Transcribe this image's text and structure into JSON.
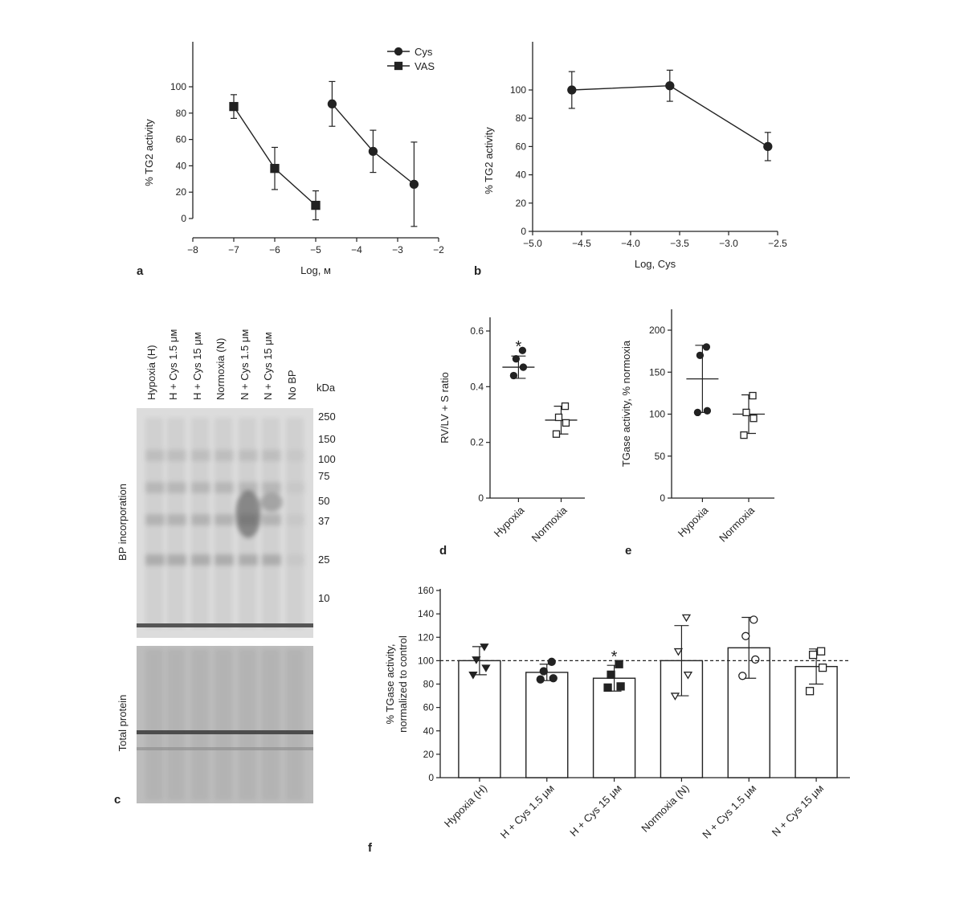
{
  "panels": {
    "a": "a",
    "b": "b",
    "c": "c",
    "d": "d",
    "e": "e",
    "f": "f"
  },
  "colors": {
    "ink": "#222222",
    "blot_bg": "#dcdcdc",
    "gel_bg": "#bdbdbd"
  },
  "chart_data": [
    {
      "id": "a",
      "type": "line",
      "xlabel": "Log, м",
      "ylabel": "% TG2 activity",
      "xlim": [
        -8,
        -2
      ],
      "ylim": [
        -10,
        130
      ],
      "xticks": [
        -8,
        -7,
        -6,
        -5,
        -4,
        -3,
        -2
      ],
      "xtick_labels": [
        "−8",
        "−7",
        "−6",
        "−5",
        "−4",
        "−3",
        "−2"
      ],
      "yticks": [
        0,
        20,
        40,
        60,
        80,
        100
      ],
      "yticks_labels": [
        "0",
        "20",
        "40",
        "60",
        "80",
        "100"
      ],
      "legend": "top-right",
      "series": [
        {
          "name": "Cys",
          "marker": "circle",
          "x": [
            -4.6,
            -3.6,
            -2.6
          ],
          "y": [
            87,
            51,
            26
          ],
          "err": [
            17,
            16,
            32
          ]
        },
        {
          "name": "VAS",
          "marker": "square",
          "x": [
            -7,
            -6,
            -5
          ],
          "y": [
            85,
            38,
            10
          ],
          "err": [
            9,
            16,
            11
          ]
        }
      ]
    },
    {
      "id": "b",
      "type": "line",
      "xlabel": "Log, Cys",
      "ylabel": "% TG2 activity",
      "xlim": [
        -5.0,
        -2.5
      ],
      "ylim": [
        0,
        125
      ],
      "xticks": [
        -5.0,
        -4.5,
        -4.0,
        -3.5,
        -3.0,
        -2.5
      ],
      "xtick_labels": [
        "−5.0",
        "−4.5",
        "−4.0",
        "−3.5",
        "−3.0",
        "−2.5"
      ],
      "yticks": [
        0,
        20,
        40,
        60,
        80,
        100
      ],
      "yticks_labels": [
        "0",
        "20",
        "40",
        "60",
        "80",
        "100"
      ],
      "series": [
        {
          "marker": "circle",
          "x": [
            -4.6,
            -3.6,
            -2.6
          ],
          "y": [
            100,
            103,
            60
          ],
          "err": [
            13,
            11,
            10
          ]
        }
      ]
    },
    {
      "id": "d",
      "type": "scatter",
      "ylabel": "RV/LV + S ratio",
      "categories": [
        "Hypoxia",
        "Normoxia"
      ],
      "ylim": [
        0,
        0.65
      ],
      "yticks": [
        0,
        0.2,
        0.4,
        0.6
      ],
      "yticks_labels": [
        "0",
        "0.2",
        "0.4",
        "0.6"
      ],
      "annotations": [
        "*"
      ],
      "groups": [
        {
          "marker": "filled",
          "points": [
            0.44,
            0.47,
            0.5,
            0.53
          ],
          "mean": 0.47,
          "sd": 0.04
        },
        {
          "marker": "open-square",
          "points": [
            0.23,
            0.27,
            0.29,
            0.33
          ],
          "mean": 0.28,
          "sd": 0.05
        }
      ]
    },
    {
      "id": "e",
      "type": "scatter",
      "ylabel": "TGase activity, % normoxia",
      "categories": [
        "Hypoxia",
        "Normoxia"
      ],
      "ylim": [
        0,
        220
      ],
      "yticks": [
        0,
        50,
        100,
        150,
        200
      ],
      "yticks_labels": [
        "0",
        "50",
        "100",
        "150",
        "200"
      ],
      "groups": [
        {
          "marker": "filled",
          "points": [
            102,
            104,
            170,
            180
          ],
          "mean": 142,
          "sd": 40
        },
        {
          "marker": "open-square",
          "points": [
            75,
            95,
            102,
            122
          ],
          "mean": 100,
          "sd": 23
        }
      ]
    },
    {
      "id": "f",
      "type": "bar",
      "ylabel": "% TGase activity, normalized to control",
      "categories": [
        "Hypoxia (H)",
        "H + Cys 1.5 μм",
        "H + Cys 15 μм",
        "Normoxia (N)",
        "N + Cys 1.5 μм",
        "N + Cys 15 μм"
      ],
      "values": [
        100,
        90,
        85,
        100,
        111,
        95
      ],
      "sd": [
        12,
        7,
        11,
        30,
        26,
        15
      ],
      "ylim": [
        0,
        160
      ],
      "yticks": [
        0,
        20,
        40,
        60,
        80,
        100,
        120,
        140,
        160
      ],
      "yticks_labels": [
        "0",
        "20",
        "40",
        "60",
        "80",
        "100",
        "120",
        "140",
        "160"
      ],
      "reference_line": 100,
      "annotations": [
        "*"
      ],
      "points": [
        {
          "marker": "down-triangle-filled",
          "values": [
            88,
            94,
            101,
            112
          ]
        },
        {
          "marker": "circle-filled",
          "values": [
            84,
            85,
            91,
            99
          ]
        },
        {
          "marker": "square-filled",
          "values": [
            77,
            78,
            88,
            97
          ]
        },
        {
          "marker": "down-triangle-open",
          "values": [
            70,
            88,
            108,
            137
          ]
        },
        {
          "marker": "circle-open",
          "values": [
            87,
            101,
            121,
            135
          ]
        },
        {
          "marker": "square-open",
          "values": [
            74,
            94,
            105,
            108
          ]
        }
      ]
    }
  ],
  "blot": {
    "lanes": [
      "Hypoxia (H)",
      "H + Cys 1.5 μм",
      "H + Cys 15 μм",
      "Normoxia (N)",
      "N + Cys 1.5 μм",
      "N + Cys 15 μм",
      "No BP"
    ],
    "unit": "kDa",
    "markers": [
      "250",
      "150",
      "100",
      "75",
      "50",
      "37",
      "25",
      "10"
    ],
    "top_label": "BP incorporation",
    "bottom_label": "Total protein"
  }
}
